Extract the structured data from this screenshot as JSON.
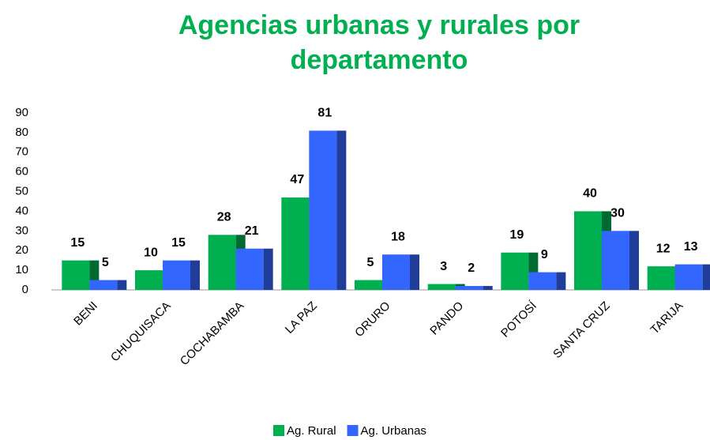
{
  "chart_data": {
    "type": "bar",
    "title": "Agencias urbanas y rurales por departamento",
    "categories": [
      "BENI",
      "CHUQUISACA",
      "COCHABAMBA",
      "LA PAZ",
      "ORURO",
      "PANDO",
      "POTOSÍ",
      "SANTA CRUZ",
      "TARIJA"
    ],
    "series": [
      {
        "name": "Ag. Rural",
        "color": "#00b050",
        "values": [
          15,
          10,
          28,
          47,
          5,
          3,
          19,
          40,
          12
        ]
      },
      {
        "name": "Ag. Urbanas",
        "color": "#3366ff",
        "values": [
          5,
          15,
          21,
          81,
          18,
          2,
          9,
          30,
          13
        ]
      }
    ],
    "ylim": [
      0,
      90
    ],
    "yticks": [
      0,
      10,
      20,
      30,
      40,
      50,
      60,
      70,
      80,
      90
    ],
    "grid": false,
    "legend": "bottom"
  }
}
